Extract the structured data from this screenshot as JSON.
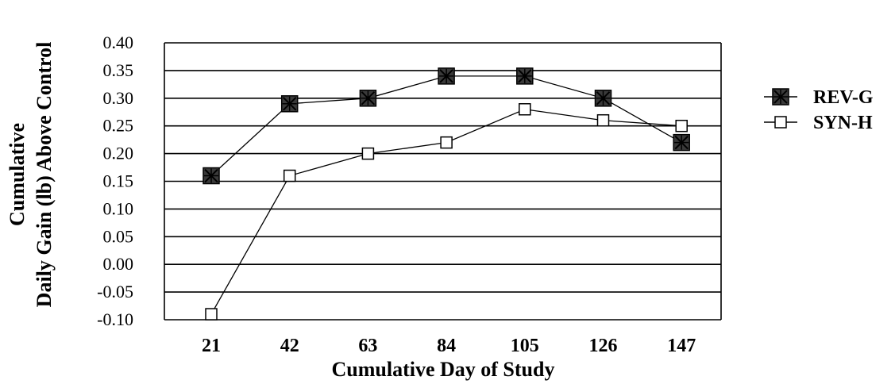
{
  "chart_data": {
    "type": "line",
    "x": [
      21,
      42,
      63,
      84,
      105,
      126,
      147
    ],
    "xlabel": "Cumulative Day of Study",
    "ylabel_lines": [
      "Cumulative",
      "Daily Gain (lb) Above Control"
    ],
    "y_ticks": [
      "0.40",
      "0.35",
      "0.30",
      "0.25",
      "0.20",
      "0.15",
      "0.10",
      "0.05",
      "0.00",
      "-0.05",
      "-0.10"
    ],
    "ylim": [
      -0.1,
      0.4
    ],
    "grid": true,
    "legend_position": "right",
    "series": [
      {
        "name": "REV-G",
        "marker": "filled-square-with-cross",
        "values": [
          0.16,
          0.29,
          0.3,
          0.34,
          0.34,
          0.3,
          0.22
        ]
      },
      {
        "name": "SYN-H",
        "marker": "hollow-square",
        "values": [
          -0.09,
          0.16,
          0.2,
          0.22,
          0.28,
          0.26,
          0.25
        ]
      }
    ]
  }
}
